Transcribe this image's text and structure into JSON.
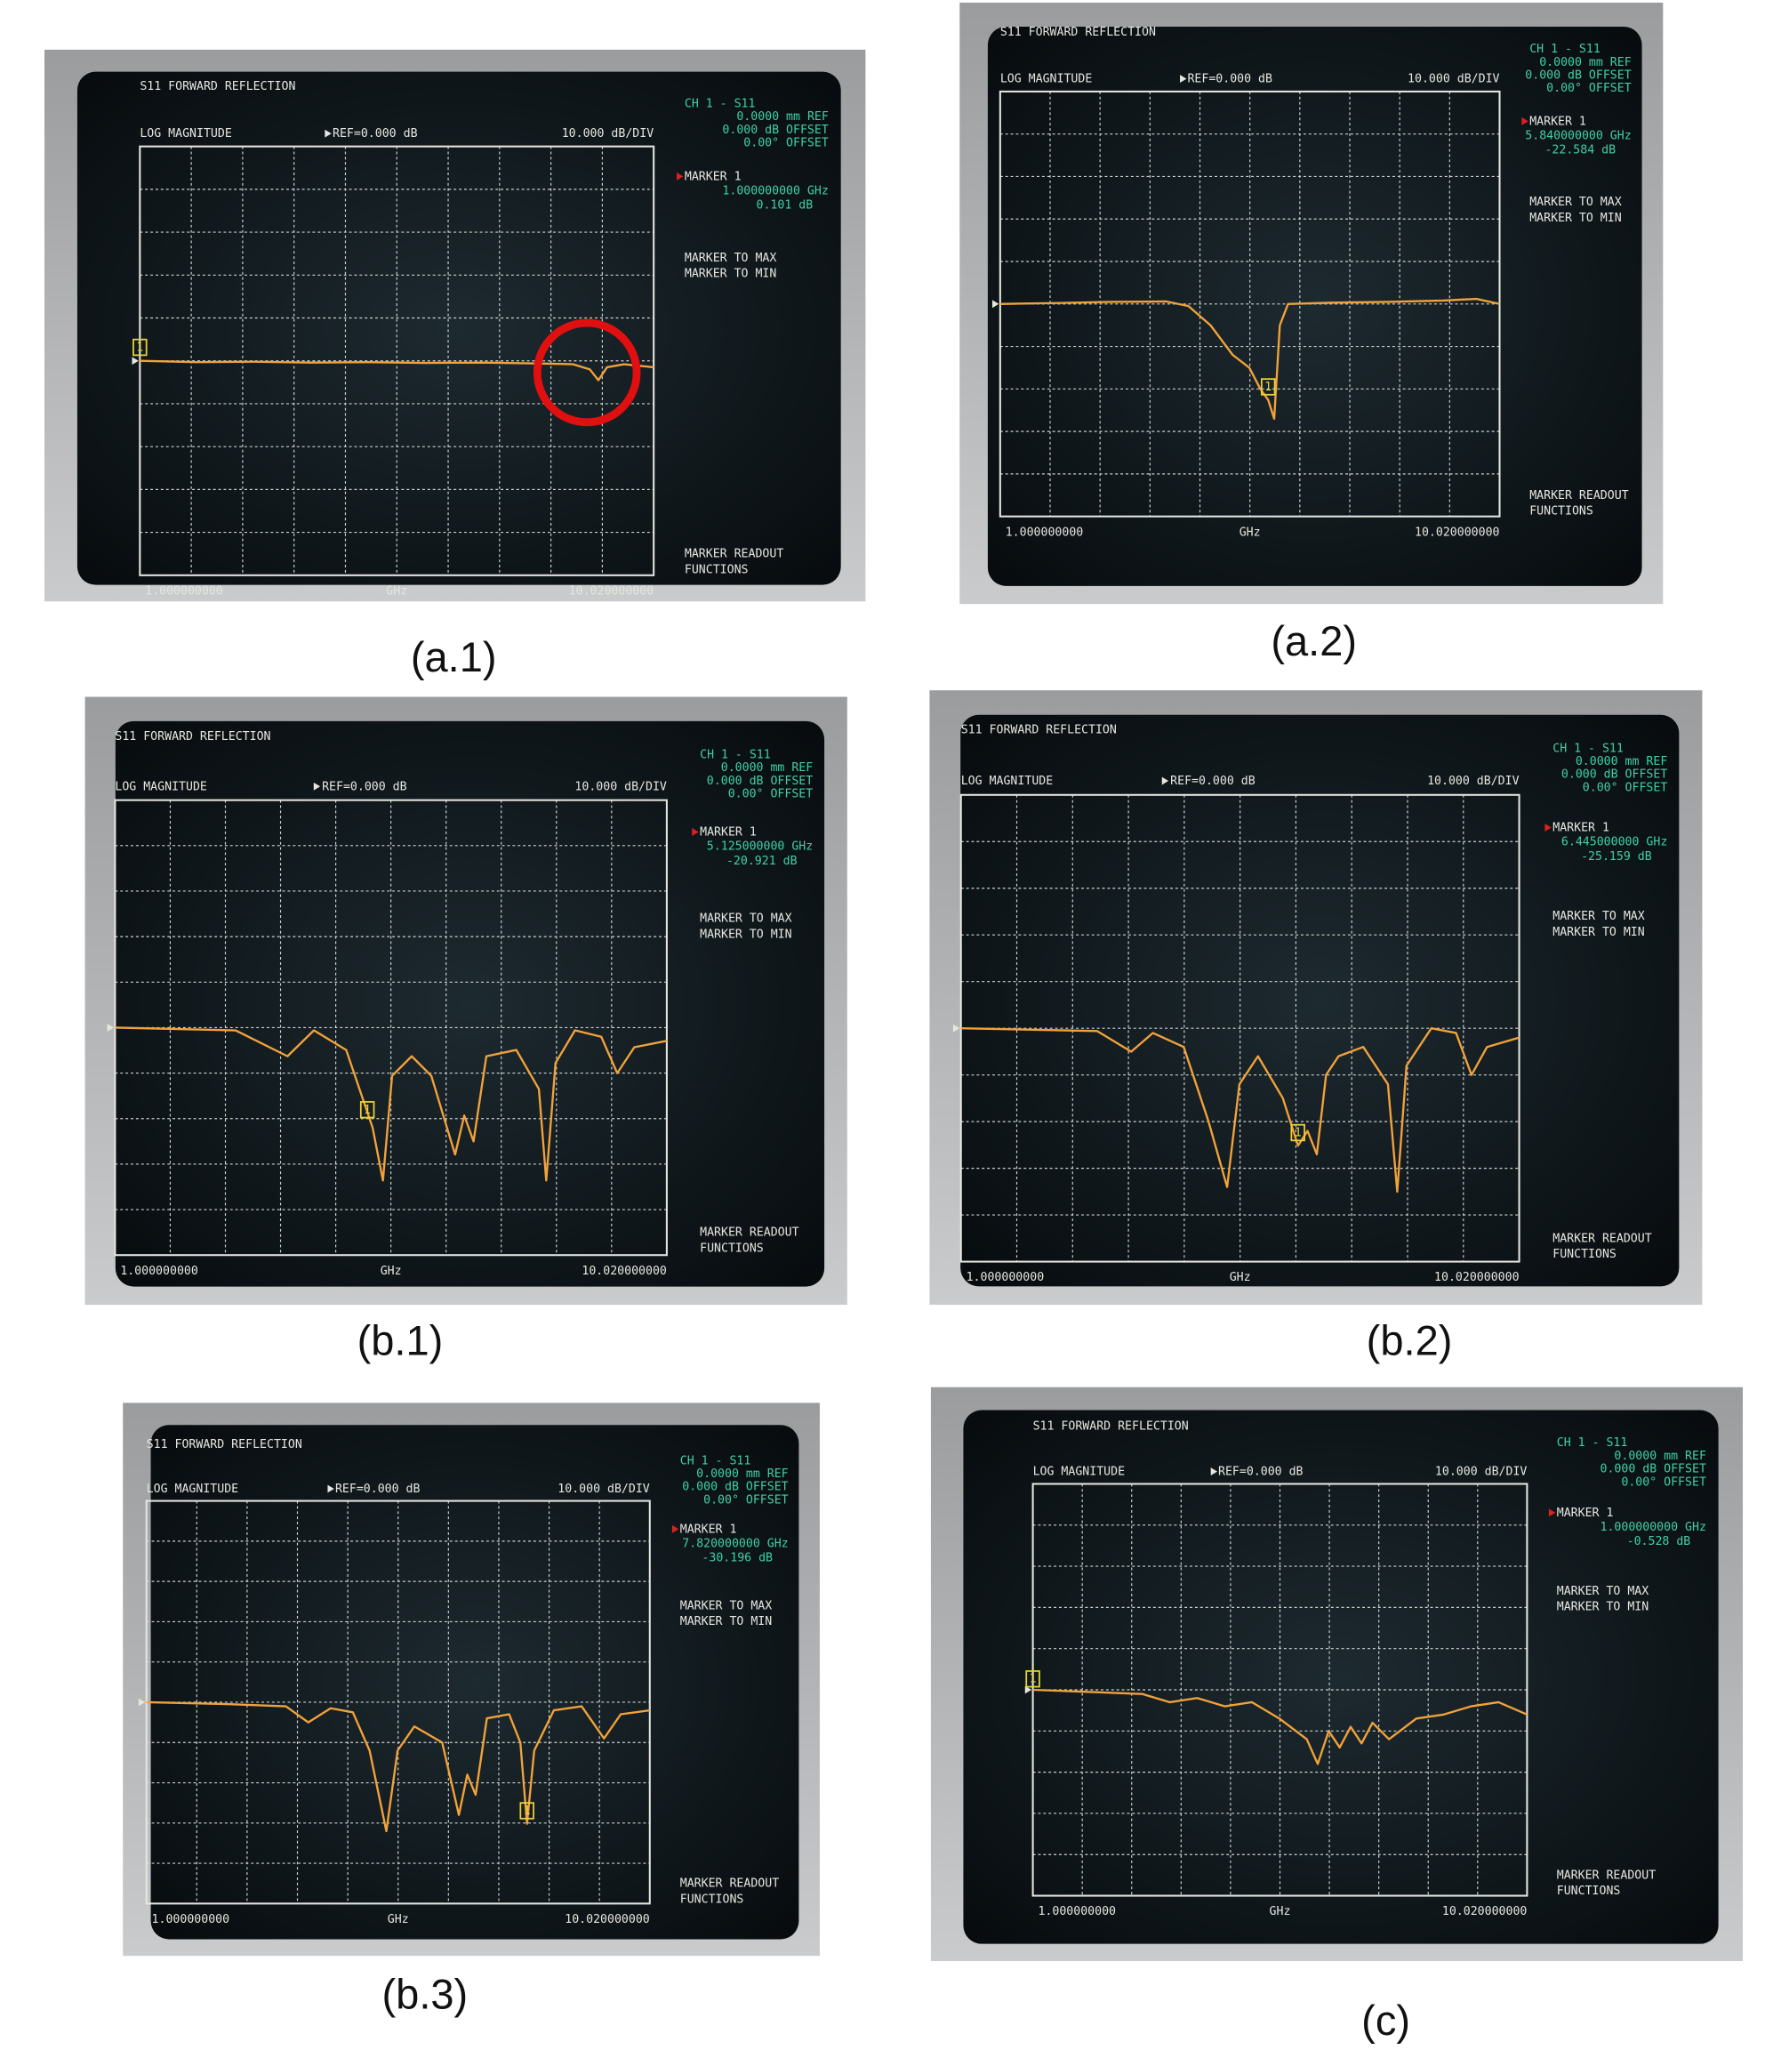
{
  "panels": [
    {
      "caption": "(a.1)",
      "title": "S11 FORWARD REFLECTION",
      "format": "LOG MAGNITUDE",
      "reference": "REF=0.000 dB",
      "scale": "10.000 dB/DIV",
      "channel": "CH 1 - S11",
      "settings": [
        "0.0000 mm REF",
        "0.000 dB OFFSET",
        "0.00° OFFSET"
      ],
      "marker": {
        "name": "MARKER 1",
        "tag": "1",
        "x": 1.0,
        "y": 0.101,
        "x_label": "1.000000000 GHz",
        "y_label": "0.101 dB"
      },
      "softkeys": [
        "MARKER TO MAX",
        "MARKER TO MIN"
      ],
      "bottom_key": [
        "MARKER READOUT",
        "FUNCTIONS"
      ],
      "start": "1.000000000",
      "unit": "GHz",
      "stop": "10.020000000",
      "xlim": [
        1,
        10.02
      ],
      "ylim": [
        -50,
        50
      ],
      "trace": {
        "x": [
          1,
          2,
          3,
          4,
          5,
          6,
          7,
          8,
          8.6,
          8.9,
          9.05,
          9.2,
          9.5,
          10.02
        ],
        "y": [
          0,
          -0.3,
          -0.2,
          -0.4,
          -0.3,
          -0.5,
          -0.4,
          -0.6,
          -0.8,
          -2,
          -4.5,
          -1.5,
          -0.8,
          -1.5
        ]
      }
    },
    {
      "caption": "(a.2)",
      "title": "S11 FORWARD REFLECTION",
      "format": "LOG MAGNITUDE",
      "reference": "REF=0.000 dB",
      "scale": "10.000 dB/DIV",
      "channel": "CH 1 - S11",
      "settings": [
        "0.0000 mm REF",
        "0.000 dB OFFSET",
        "0.00° OFFSET"
      ],
      "marker": {
        "name": "MARKER 1",
        "tag": "1",
        "x": 5.84,
        "y": -22.584,
        "x_label": "5.840000000 GHz",
        "y_label": "-22.584 dB"
      },
      "softkeys": [
        "MARKER TO MAX",
        "MARKER TO MIN"
      ],
      "bottom_key": [
        "MARKER READOUT",
        "FUNCTIONS"
      ],
      "start": "1.000000000",
      "unit": "GHz",
      "stop": "10.020000000",
      "xlim": [
        1,
        10.02
      ],
      "ylim": [
        -50,
        50
      ],
      "trace": {
        "x": [
          1,
          2,
          3,
          4,
          4.4,
          4.8,
          5.2,
          5.5,
          5.7,
          5.84,
          5.95,
          6.05,
          6.2,
          7,
          8,
          9,
          9.6,
          10.02
        ],
        "y": [
          0,
          0.2,
          0.5,
          0.6,
          -0.5,
          -5,
          -12,
          -15,
          -20,
          -22.584,
          -27,
          -5,
          0,
          0.3,
          0.5,
          0.8,
          1.2,
          0
        ]
      }
    },
    {
      "caption": "(b.1)",
      "title": "S11 FORWARD REFLECTION",
      "format": "LOG MAGNITUDE",
      "reference": "REF=0.000 dB",
      "scale": "10.000 dB/DIV",
      "channel": "CH 1 - S11",
      "settings": [
        "0.0000 mm REF",
        "0.000 dB OFFSET",
        "0.00° OFFSET"
      ],
      "marker": {
        "name": "MARKER 1",
        "tag": "1",
        "x": 5.125,
        "y": -20.921,
        "x_label": "5.125000000 GHz",
        "y_label": "-20.921 dB"
      },
      "softkeys": [
        "MARKER TO MAX",
        "MARKER TO MIN"
      ],
      "bottom_key": [
        "MARKER READOUT",
        "FUNCTIONS"
      ],
      "start": "1.000000000",
      "unit": "GHz",
      "stop": "10.020000000",
      "xlim": [
        1,
        10.02
      ],
      "ylim": [
        -50,
        50
      ],
      "trace": {
        "x": [
          1,
          2.97,
          3.82,
          4.25,
          4.78,
          5.21,
          5.38,
          5.53,
          5.85,
          6.17,
          6.56,
          6.71,
          6.86,
          7.07,
          7.56,
          7.93,
          8.05,
          8.2,
          8.52,
          8.95,
          9.21,
          9.49,
          10.02
        ],
        "y": [
          0,
          -0.6,
          -6.3,
          -0.6,
          -4.9,
          -22,
          -33.6,
          -10.6,
          -6.3,
          -10.6,
          -27.9,
          -19.3,
          -25,
          -6.3,
          -4.9,
          -13.5,
          -33.6,
          -7.8,
          -0.6,
          -2,
          -10,
          -4.3,
          -2.9
        ]
      }
    },
    {
      "caption": "(b.2)",
      "title": "S11 FORWARD REFLECTION",
      "format": "LOG MAGNITUDE",
      "reference": "REF=0.000 dB",
      "scale": "10.000 dB/DIV",
      "channel": "CH 1 - S11",
      "settings": [
        "0.0000 mm REF",
        "0.000 dB OFFSET",
        "0.00° OFFSET"
      ],
      "marker": {
        "name": "MARKER 1",
        "tag": "1",
        "x": 6.445,
        "y": -25.159,
        "x_label": "6.445000000 GHz",
        "y_label": "-25.159 dB"
      },
      "softkeys": [
        "MARKER TO MAX",
        "MARKER TO MIN"
      ],
      "bottom_key": [
        "MARKER READOUT",
        "FUNCTIONS"
      ],
      "start": "1.000000000",
      "unit": "GHz",
      "stop": "10.020000000",
      "xlim": [
        1,
        10.02
      ],
      "ylim": [
        -50,
        50
      ],
      "trace": {
        "x": [
          1,
          3.2,
          3.75,
          4.1,
          4.6,
          5.0,
          5.3,
          5.5,
          5.8,
          6.2,
          6.445,
          6.6,
          6.75,
          6.9,
          7.1,
          7.5,
          7.9,
          8.05,
          8.2,
          8.6,
          9.0,
          9.25,
          9.5,
          10.02
        ],
        "y": [
          0,
          -0.6,
          -5,
          -1,
          -4,
          -20,
          -34,
          -12,
          -6,
          -15,
          -25.159,
          -22,
          -27,
          -10,
          -6,
          -4,
          -12,
          -35,
          -8,
          0,
          -1,
          -10,
          -4,
          -2
        ]
      }
    },
    {
      "caption": "(b.3)",
      "title": "S11 FORWARD REFLECTION",
      "format": "LOG MAGNITUDE",
      "reference": "REF=0.000 dB",
      "scale": "10.000 dB/DIV",
      "channel": "CH 1 - S11",
      "settings": [
        "0.0000 mm REF",
        "0.000 dB OFFSET",
        "0.00° OFFSET"
      ],
      "marker": {
        "name": "MARKER 1",
        "tag": "1",
        "x": 7.82,
        "y": -30.196,
        "x_label": "7.820000000 GHz",
        "y_label": "-30.196 dB"
      },
      "softkeys": [
        "MARKER TO MAX",
        "MARKER TO MIN"
      ],
      "bottom_key": [
        "MARKER READOUT",
        "FUNCTIONS"
      ],
      "start": "1.000000000",
      "unit": "GHz",
      "stop": "10.020000000",
      "xlim": [
        1,
        10.02
      ],
      "ylim": [
        -50,
        50
      ],
      "trace": {
        "x": [
          1,
          2.5,
          3.5,
          3.9,
          4.3,
          4.7,
          5.0,
          5.3,
          5.5,
          5.8,
          6.3,
          6.6,
          6.75,
          6.9,
          7.1,
          7.5,
          7.7,
          7.82,
          7.95,
          8.3,
          8.8,
          9.2,
          9.5,
          10.02
        ],
        "y": [
          0,
          -0.5,
          -1,
          -5,
          -1.5,
          -2.5,
          -12,
          -32,
          -12,
          -6,
          -10,
          -28,
          -18,
          -23,
          -4,
          -3,
          -10,
          -30.196,
          -12,
          -2,
          -1,
          -9,
          -3,
          -2
        ]
      }
    },
    {
      "caption": "(c)",
      "title": "S11 FORWARD REFLECTION",
      "format": "LOG MAGNITUDE",
      "reference": "REF=0.000 dB",
      "scale": "10.000 dB/DIV",
      "channel": "CH 1 - S11",
      "settings": [
        "0.0000 mm REF",
        "0.000 dB OFFSET",
        "0.00° OFFSET"
      ],
      "marker": {
        "name": "MARKER 1",
        "tag": "1",
        "x": 1.0,
        "y": -0.528,
        "x_label": "1.000000000 GHz",
        "y_label": "-0.528 dB"
      },
      "softkeys": [
        "MARKER TO MAX",
        "MARKER TO MIN"
      ],
      "bottom_key": [
        "MARKER READOUT",
        "FUNCTIONS"
      ],
      "start": "1.000000000",
      "unit": "GHz",
      "stop": "10.020000000",
      "xlim": [
        1,
        10.02
      ],
      "ylim": [
        -50,
        50
      ],
      "trace": {
        "x": [
          1,
          2,
          3,
          3.5,
          4,
          4.5,
          5,
          5.5,
          6,
          6.2,
          6.4,
          6.6,
          6.8,
          7,
          7.2,
          7.5,
          8,
          8.5,
          9,
          9.5,
          10.02
        ],
        "y": [
          0,
          -0.5,
          -1,
          -3,
          -2,
          -4,
          -3,
          -7,
          -12,
          -18,
          -10,
          -14,
          -9,
          -13,
          -8,
          -12,
          -7,
          -6,
          -4,
          -3,
          -6
        ]
      }
    }
  ]
}
